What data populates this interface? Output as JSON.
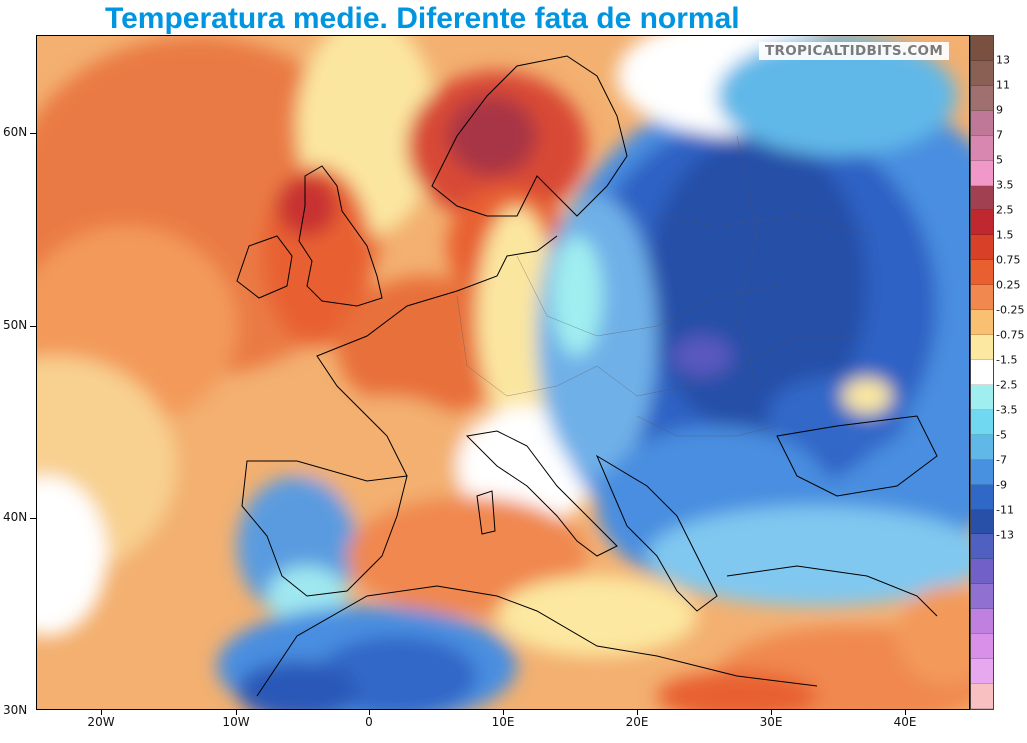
{
  "title": "Temperatura medie. Diferente fata de normal",
  "watermark": "TROPICALTIDBITS.COM",
  "y_axis": {
    "ticks": [
      {
        "label": "60N",
        "value": 60
      },
      {
        "label": "50N",
        "value": 50
      },
      {
        "label": "40N",
        "value": 40
      },
      {
        "label": "30N",
        "value": 30
      }
    ],
    "range": [
      30,
      65
    ]
  },
  "x_axis": {
    "ticks": [
      {
        "label": "20W",
        "value": -20
      },
      {
        "label": "10W",
        "value": -10
      },
      {
        "label": "0",
        "value": 0
      },
      {
        "label": "10E",
        "value": 10
      },
      {
        "label": "20E",
        "value": 20
      },
      {
        "label": "30E",
        "value": 30
      },
      {
        "label": "40E",
        "value": 40
      }
    ],
    "range": [
      -25,
      45
    ]
  },
  "colorbar": {
    "colors": [
      "#7a5040",
      "#8a6055",
      "#a07070",
      "#c07898",
      "#d888b0",
      "#f098c8",
      "#a04050",
      "#c02830",
      "#d84028",
      "#e86030",
      "#f08850",
      "#f8c070",
      "#fce8a0",
      "#ffffff",
      "#a0eef0",
      "#70d8f0",
      "#60b8e8",
      "#4890e0",
      "#3068c8",
      "#2850a8",
      "#5060c0",
      "#7060c8",
      "#9070d0",
      "#c080e0",
      "#d890e8",
      "#e8a8f0",
      "#f8c0c0"
    ],
    "labels": [
      "13",
      "11",
      "9",
      "7",
      "5",
      "3.5",
      "2.5",
      "1.5",
      "0.75",
      "0.25",
      "-0.25",
      "-0.75",
      "-1.5",
      "-2.5",
      "-3.5",
      "-5",
      "-7",
      "-9",
      "-11",
      "-13"
    ]
  }
}
